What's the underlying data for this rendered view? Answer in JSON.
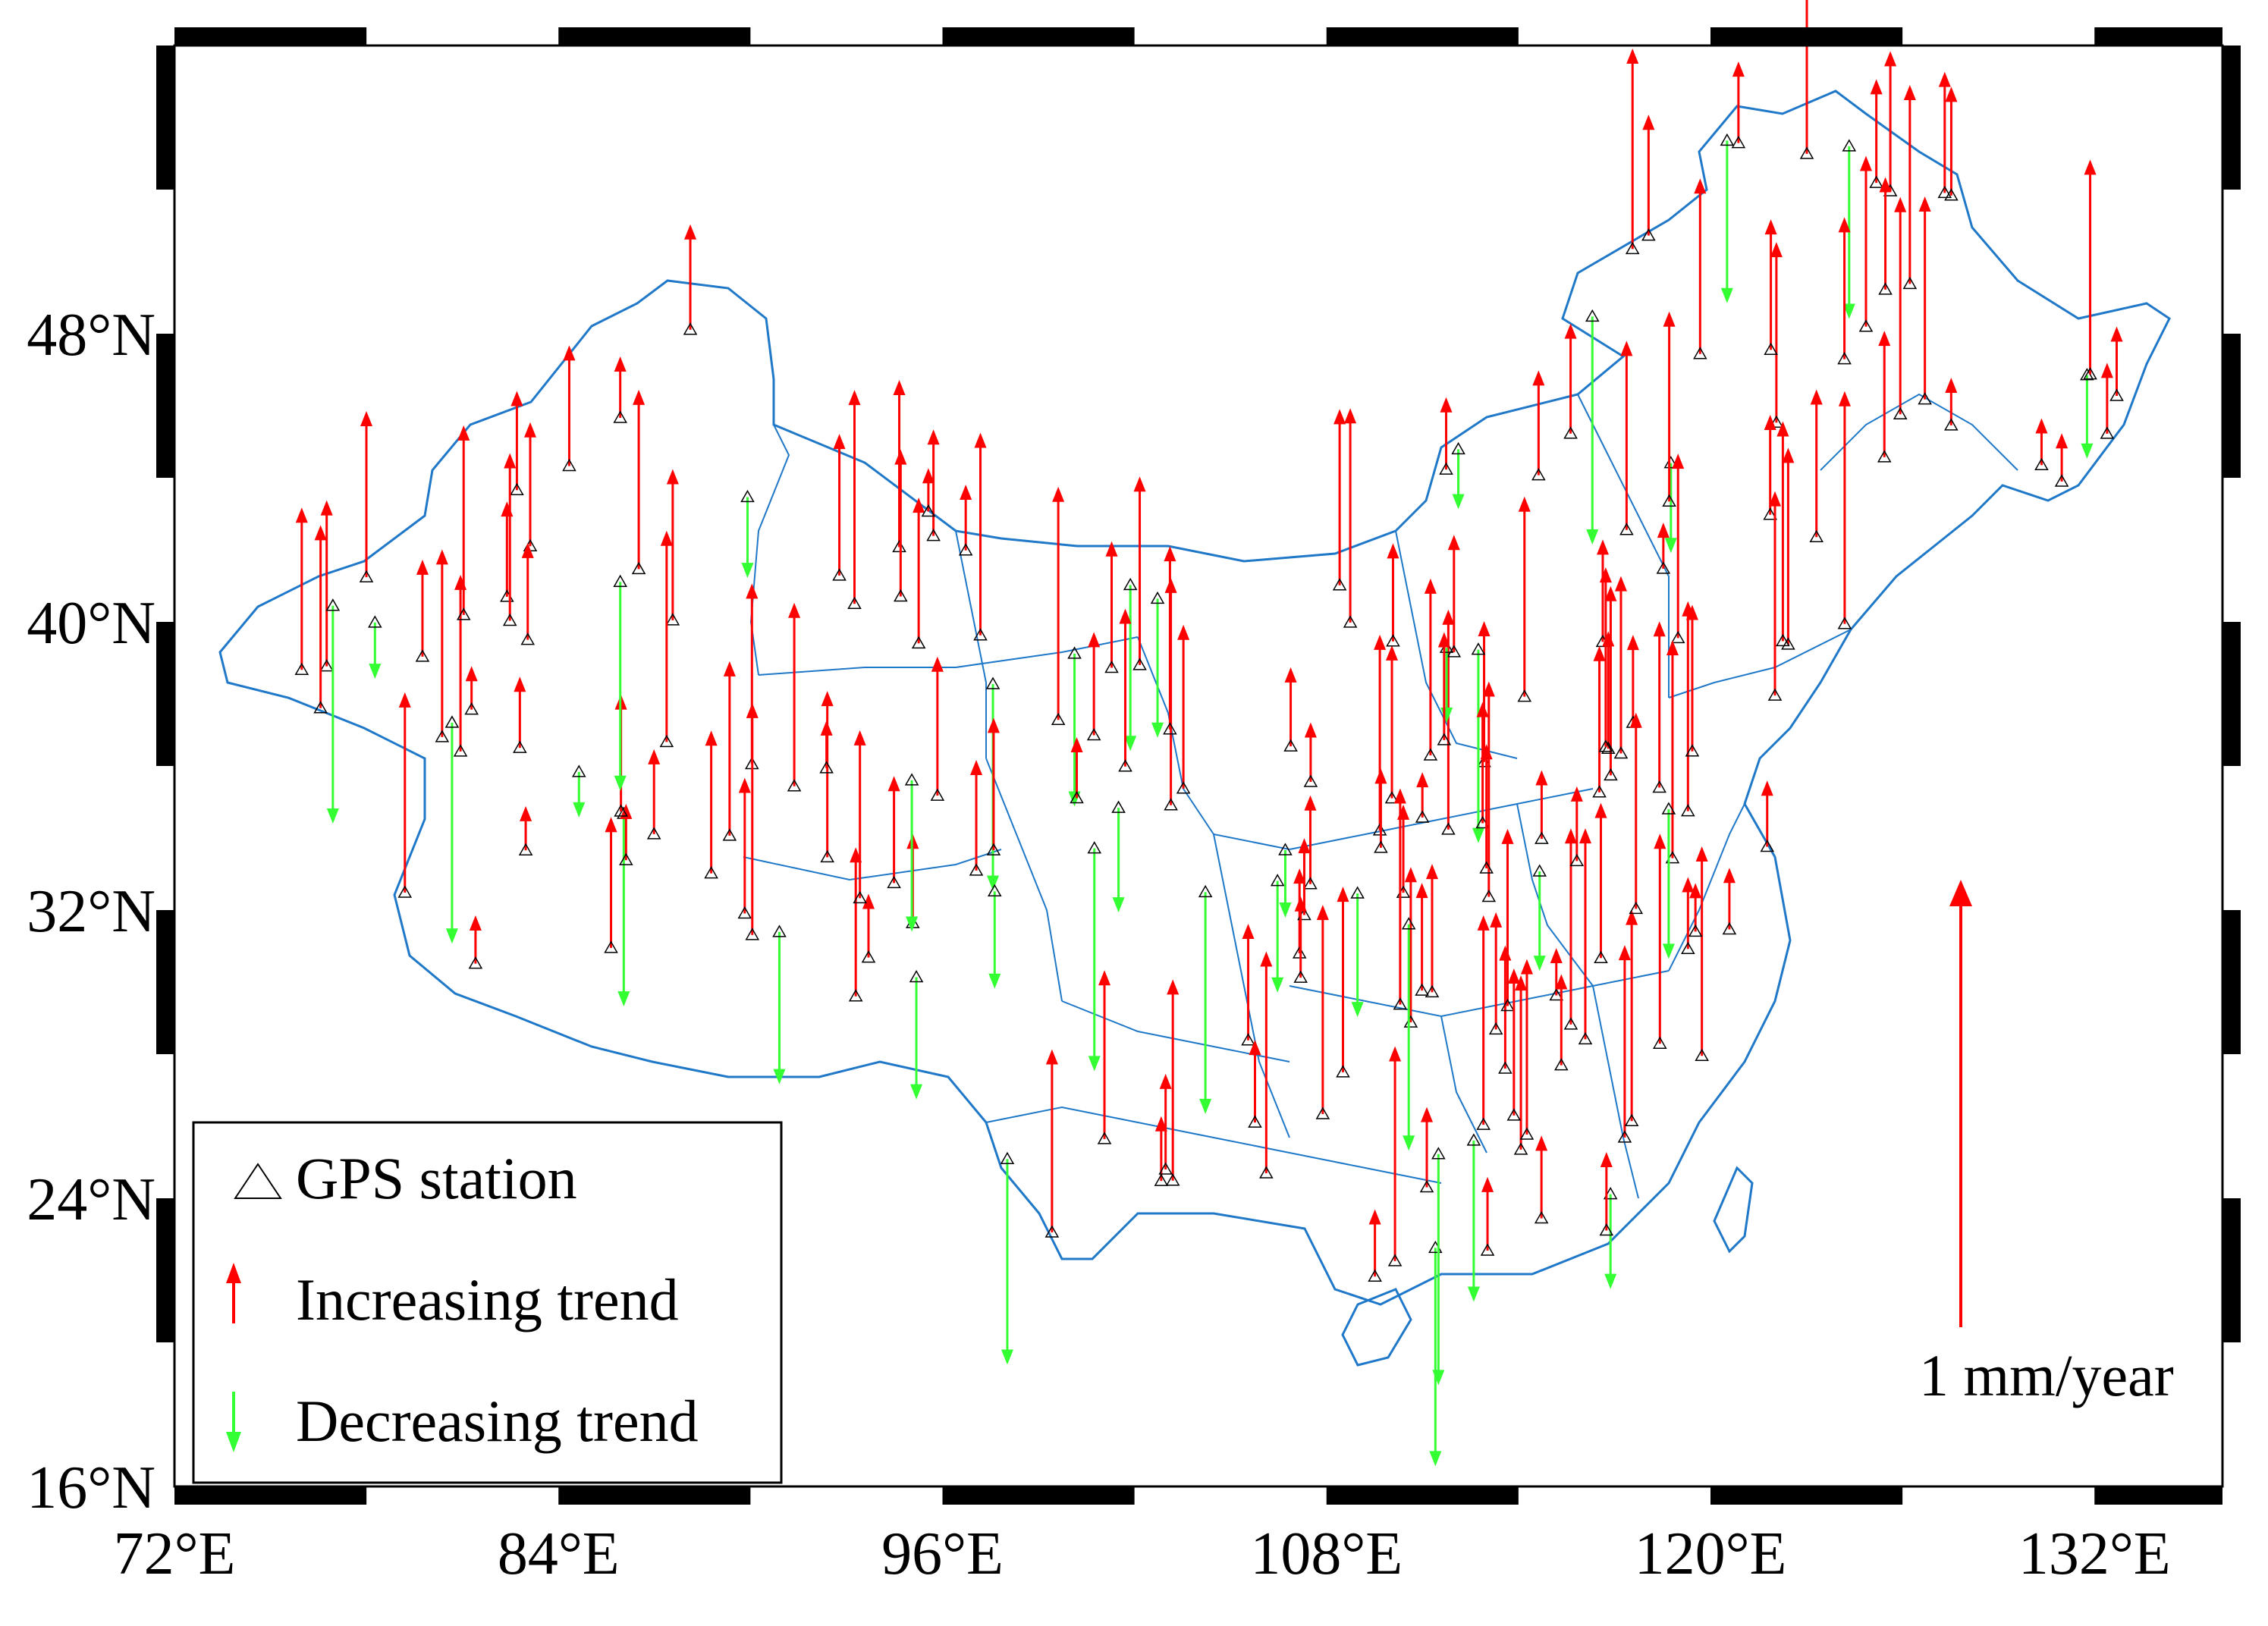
{
  "map": {
    "lon_range": [
      72,
      136
    ],
    "lat_range": [
      16,
      56
    ],
    "x_ticks": [
      {
        "value": 72,
        "label": "72°E"
      },
      {
        "value": 84,
        "label": "84°E"
      },
      {
        "value": 96,
        "label": "96°E"
      },
      {
        "value": 108,
        "label": "108°E"
      },
      {
        "value": 120,
        "label": "120°E"
      },
      {
        "value": 132,
        "label": "132°E"
      }
    ],
    "y_ticks": [
      {
        "value": 48,
        "label": "48°N"
      },
      {
        "value": 40,
        "label": "40°N"
      },
      {
        "value": 32,
        "label": "32°N"
      },
      {
        "value": 24,
        "label": "24°N"
      },
      {
        "value": 16,
        "label": "16°N"
      }
    ],
    "colors": {
      "increasing": "#ff0000",
      "decreasing": "#33ff33",
      "boundary": "#1f78c8",
      "frame": "#000000"
    }
  },
  "legend": {
    "station_label": "GPS  station",
    "increasing_label": "Increasing trend",
    "decreasing_label": "Decreasing trend"
  },
  "scale": {
    "label": "1 mm/year",
    "value_mm_per_year": 1
  }
}
